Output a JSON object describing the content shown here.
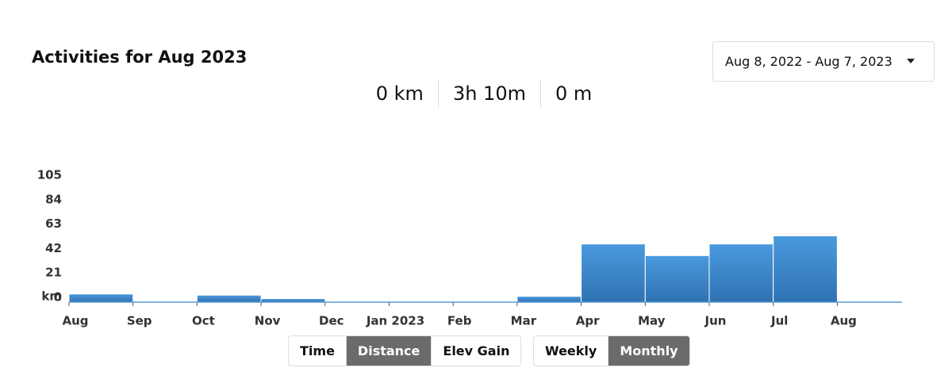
{
  "header": {
    "title": "Activities for Aug 2023",
    "date_range": "Aug 8, 2022 - Aug 7, 2023"
  },
  "stats": [
    "0 km",
    "3h 10m",
    "0 m"
  ],
  "chart_data": {
    "type": "bar",
    "categories": [
      "Aug",
      "Sep",
      "Oct",
      "Nov",
      "Dec",
      "Jan 2023",
      "Feb",
      "Mar",
      "Apr",
      "May",
      "Jun",
      "Jul",
      "Aug"
    ],
    "values": [
      7,
      0,
      6,
      3,
      0,
      0,
      0,
      5,
      50,
      40,
      50,
      57,
      null
    ],
    "y_label": "km",
    "ylim": [
      0,
      105
    ],
    "yticks": [
      0,
      21,
      42,
      63,
      84,
      105
    ],
    "color": "#3d8bd0"
  },
  "metric_buttons": [
    "Time",
    "Distance",
    "Elev Gain"
  ],
  "period_buttons": [
    "Weekly",
    "Monthly"
  ]
}
